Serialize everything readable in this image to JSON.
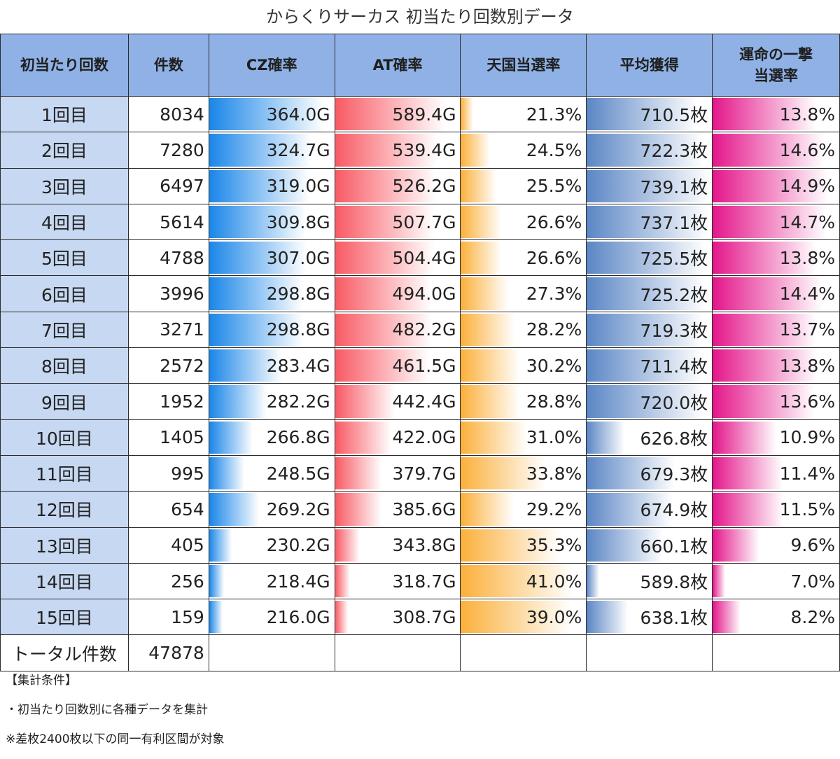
{
  "title": "からくりサーカス 初当たり回数別データ",
  "headers": [
    "初当たり回数",
    "件数",
    "CZ確率",
    "AT確率",
    "天国当選率",
    "平均獲得",
    "運命の一撃\n当選率"
  ],
  "chart_data": {
    "type": "table",
    "title": "からくりサーカス 初当たり回数別データ",
    "columns": [
      "初当たり回数",
      "件数",
      "CZ確率",
      "AT確率",
      "天国当選率",
      "平均獲得",
      "運命の一撃当選率"
    ],
    "rows": [
      [
        "1回目",
        "8034",
        "364.0G",
        "589.4G",
        "21.3%",
        "710.5枚",
        "13.8%"
      ],
      [
        "2回目",
        "7280",
        "324.7G",
        "539.4G",
        "24.5%",
        "722.3枚",
        "14.6%"
      ],
      [
        "3回目",
        "6497",
        "319.0G",
        "526.2G",
        "25.5%",
        "739.1枚",
        "14.9%"
      ],
      [
        "4回目",
        "5614",
        "309.8G",
        "507.7G",
        "26.6%",
        "737.1枚",
        "14.7%"
      ],
      [
        "5回目",
        "4788",
        "307.0G",
        "504.4G",
        "26.6%",
        "725.5枚",
        "13.8%"
      ],
      [
        "6回目",
        "3996",
        "298.8G",
        "494.0G",
        "27.3%",
        "725.2枚",
        "14.4%"
      ],
      [
        "7回目",
        "3271",
        "298.8G",
        "482.2G",
        "28.2%",
        "719.3枚",
        "13.7%"
      ],
      [
        "8回目",
        "2572",
        "283.4G",
        "461.5G",
        "30.2%",
        "711.4枚",
        "13.8%"
      ],
      [
        "9回目",
        "1952",
        "282.2G",
        "442.4G",
        "28.8%",
        "720.0枚",
        "13.6%"
      ],
      [
        "10回目",
        "1405",
        "266.8G",
        "422.0G",
        "31.0%",
        "626.8枚",
        "10.9%"
      ],
      [
        "11回目",
        "995",
        "248.5G",
        "379.7G",
        "33.8%",
        "679.3枚",
        "11.4%"
      ],
      [
        "12回目",
        "654",
        "269.2G",
        "385.6G",
        "29.2%",
        "674.9枚",
        "11.5%"
      ],
      [
        "13回目",
        "405",
        "230.2G",
        "343.8G",
        "35.3%",
        "660.1枚",
        "9.6%"
      ],
      [
        "14回目",
        "256",
        "218.4G",
        "318.7G",
        "41.0%",
        "589.8枚",
        "7.0%"
      ],
      [
        "15回目",
        "159",
        "216.0G",
        "308.7G",
        "39.0%",
        "638.1枚",
        "8.2%"
      ]
    ],
    "data_bars": {
      "CZ確率": {
        "colors": [
          "#1a86e8",
          "#ffffff"
        ],
        "fractions": [
          0.92,
          0.82,
          0.8,
          0.77,
          0.78,
          0.75,
          0.75,
          0.58,
          0.46,
          0.35,
          0.28,
          0.4,
          0.18,
          0.12,
          0.11
        ]
      },
      "AT確率": {
        "colors": [
          "#f85a64",
          "#ffffff"
        ],
        "fractions": [
          0.88,
          0.82,
          0.81,
          0.79,
          0.79,
          0.77,
          0.78,
          0.75,
          0.48,
          0.45,
          0.37,
          0.37,
          0.2,
          0.12,
          0.1
        ]
      },
      "天国当選率": {
        "colors": [
          "#fbb03b",
          "#ffffff"
        ],
        "fractions": [
          0.1,
          0.23,
          0.28,
          0.32,
          0.32,
          0.38,
          0.43,
          0.47,
          0.47,
          0.53,
          0.68,
          0.42,
          0.79,
          0.9,
          0.88
        ]
      },
      "平均獲得": {
        "colors": [
          "#5b86c5",
          "#ffffff"
        ],
        "fractions": [
          0.88,
          0.93,
          0.98,
          0.97,
          0.95,
          0.95,
          0.93,
          0.92,
          0.94,
          0.3,
          0.71,
          0.68,
          0.61,
          0.1,
          0.33
        ]
      },
      "運命の一撃当選率": {
        "colors": [
          "#e4168a",
          "#ffffff"
        ],
        "fractions": [
          0.82,
          0.88,
          0.91,
          0.9,
          0.82,
          0.87,
          0.82,
          0.83,
          0.8,
          0.5,
          0.55,
          0.56,
          0.37,
          0.1,
          0.22
        ]
      }
    }
  },
  "total": {
    "label": "トータル件数",
    "value": "47878"
  },
  "notes": [
    "【集計条件】",
    "・初当たり回数別に各種データを集計",
    "※差枚2400枚以下の同一有利区間が対象"
  ]
}
